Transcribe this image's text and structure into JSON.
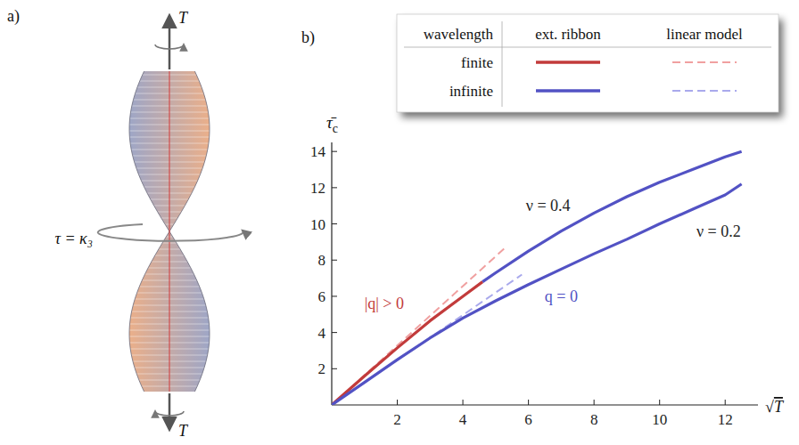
{
  "diagram": {
    "label": "a)",
    "force_top": "T",
    "force_bottom": "T",
    "twist": "τ = κ₃"
  },
  "chart_data": {
    "type": "line",
    "label": "b)",
    "xlabel": "√T",
    "ylabel": "τ̄c",
    "xlim": [
      0,
      13
    ],
    "ylim": [
      0,
      14.5
    ],
    "xticks": [
      2,
      4,
      6,
      8,
      10,
      12
    ],
    "yticks": [
      2,
      4,
      6,
      8,
      10,
      12,
      14
    ],
    "legend": "top-right",
    "legend_table": {
      "header": [
        "wavelength",
        "ext. ribbon",
        "linear model"
      ],
      "rows": [
        "finite",
        "infinite"
      ]
    },
    "series": [
      {
        "wavelength": "finite",
        "model": "ext. ribbon",
        "color": "#c23b3b",
        "line_style": "solid",
        "x": [
          0,
          1,
          2,
          3,
          4,
          4.6
        ],
        "values": [
          0,
          1.6,
          3.15,
          4.65,
          6.0,
          6.8
        ]
      },
      {
        "wavelength": "infinite",
        "model": "ext. ribbon",
        "color": "#5252c4",
        "line_style": "solid",
        "x": [
          4.6,
          5,
          6,
          7,
          8,
          9,
          10,
          11,
          12,
          12.5
        ],
        "values": [
          6.8,
          7.3,
          8.5,
          9.6,
          10.6,
          11.5,
          12.3,
          13.0,
          13.7,
          14.0
        ]
      },
      {
        "wavelength": "infinite",
        "model": "ext. ribbon",
        "color": "#5252c4",
        "line_style": "solid",
        "x": [
          0,
          1,
          2,
          3,
          4,
          5,
          6,
          7,
          8,
          9,
          10,
          11,
          12,
          12.5
        ],
        "values": [
          0,
          1.25,
          2.5,
          3.7,
          4.8,
          5.75,
          6.65,
          7.5,
          8.35,
          9.15,
          10.0,
          10.8,
          11.6,
          12.2
        ]
      },
      {
        "wavelength": "finite",
        "model": "linear model",
        "color": "#f0a0a0",
        "line_style": "dashed",
        "x": [
          0,
          5.3
        ],
        "values": [
          0,
          8.7
        ]
      },
      {
        "wavelength": "infinite",
        "model": "linear model",
        "color": "#a9a9ec",
        "line_style": "dashed",
        "x": [
          0,
          5.8
        ],
        "values": [
          0,
          7.2
        ]
      }
    ],
    "annotations": [
      {
        "text": "ν = 0.4",
        "x": 6.6,
        "y": 11.0,
        "color": "#222222"
      },
      {
        "text": "ν = 0.2",
        "x": 11.8,
        "y": 9.6,
        "color": "#222222"
      },
      {
        "text": "|q| > 0",
        "x": 1.6,
        "y": 5.6,
        "color": "#c23b3b"
      },
      {
        "text": "q = 0",
        "x": 7.0,
        "y": 6.0,
        "color": "#5252c4"
      }
    ]
  }
}
